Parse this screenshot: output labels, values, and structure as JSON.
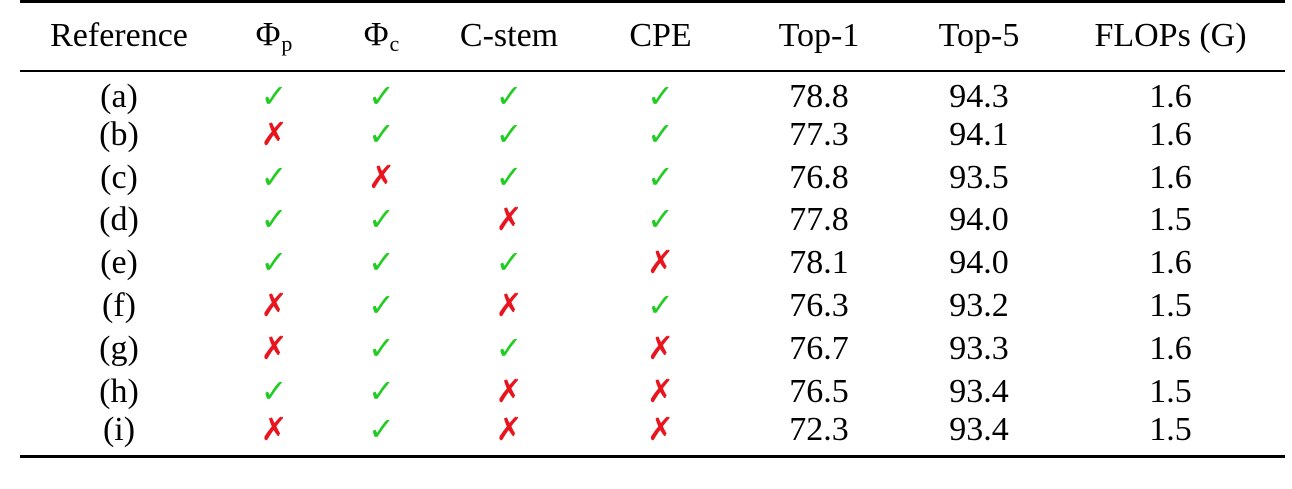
{
  "colors": {
    "check": "#22cc22",
    "cross": "#e8141e"
  },
  "table": {
    "headers": {
      "reference": "Reference",
      "phi_p_symbol": "Φ",
      "phi_p_sub": "p",
      "phi_c_symbol": "Φ",
      "phi_c_sub": "c",
      "c_stem": "C-stem",
      "cpe": "CPE",
      "top1": "Top-1",
      "top5": "Top-5",
      "flops": "FLOPs (G)"
    },
    "check_glyph": "✓",
    "cross_glyph": "✗",
    "rows": [
      {
        "ref": "(a)",
        "phi_p": true,
        "phi_c": true,
        "c_stem": true,
        "cpe": true,
        "top1": "78.8",
        "top5": "94.3",
        "flops": "1.6"
      },
      {
        "ref": "(b)",
        "phi_p": false,
        "phi_c": true,
        "c_stem": true,
        "cpe": true,
        "top1": "77.3",
        "top5": "94.1",
        "flops": "1.6"
      },
      {
        "ref": "(c)",
        "phi_p": true,
        "phi_c": false,
        "c_stem": true,
        "cpe": true,
        "top1": "76.8",
        "top5": "93.5",
        "flops": "1.6"
      },
      {
        "ref": "(d)",
        "phi_p": true,
        "phi_c": true,
        "c_stem": false,
        "cpe": true,
        "top1": "77.8",
        "top5": "94.0",
        "flops": "1.5"
      },
      {
        "ref": "(e)",
        "phi_p": true,
        "phi_c": true,
        "c_stem": true,
        "cpe": false,
        "top1": "78.1",
        "top5": "94.0",
        "flops": "1.6"
      },
      {
        "ref": "(f)",
        "phi_p": false,
        "phi_c": true,
        "c_stem": false,
        "cpe": true,
        "top1": "76.3",
        "top5": "93.2",
        "flops": "1.5"
      },
      {
        "ref": "(g)",
        "phi_p": false,
        "phi_c": true,
        "c_stem": true,
        "cpe": false,
        "top1": "76.7",
        "top5": "93.3",
        "flops": "1.6"
      },
      {
        "ref": "(h)",
        "phi_p": true,
        "phi_c": true,
        "c_stem": false,
        "cpe": false,
        "top1": "76.5",
        "top5": "93.4",
        "flops": "1.5"
      },
      {
        "ref": "(i)",
        "phi_p": false,
        "phi_c": true,
        "c_stem": false,
        "cpe": false,
        "top1": "72.3",
        "top5": "93.4",
        "flops": "1.5"
      }
    ]
  }
}
